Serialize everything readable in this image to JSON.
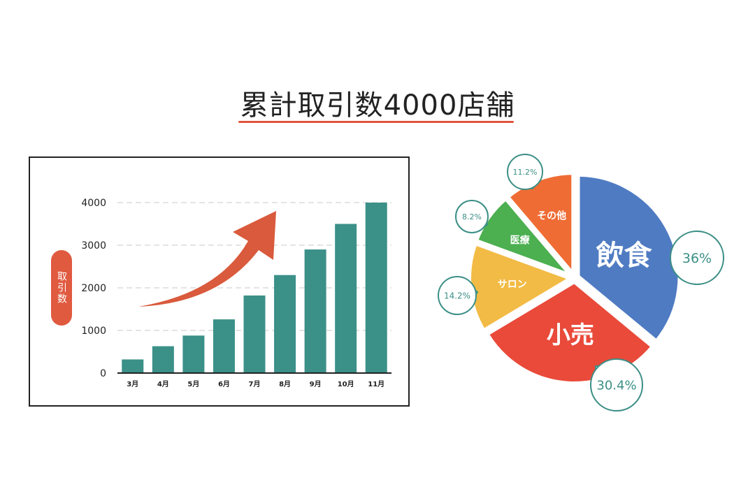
{
  "page": {
    "title": "累計取引数4000店舗"
  },
  "chart_data": [
    {
      "type": "bar",
      "ylabel": "取引数",
      "categories": [
        "3月",
        "4月",
        "5月",
        "6月",
        "7月",
        "8月",
        "9月",
        "10月",
        "11月"
      ],
      "values": [
        320,
        630,
        880,
        1260,
        1820,
        2300,
        2900,
        3500,
        4000
      ],
      "yticks": [
        0,
        1000,
        2000,
        3000,
        4000
      ],
      "ylim": [
        0,
        4000
      ],
      "grid": true,
      "colors": {
        "bar": "#3b9088",
        "arrow": "#d95a3c",
        "label_pill": "#e05a40"
      }
    },
    {
      "type": "pie",
      "slices": [
        {
          "label": "飲食",
          "value": 36,
          "value_label": "36%",
          "color": "#4f7bc2"
        },
        {
          "label": "小売",
          "value": 30.4,
          "value_label": "30.4%",
          "color": "#e94a3a"
        },
        {
          "label": "サロン",
          "value": 14.2,
          "value_label": "14.2%",
          "color": "#f2bb45"
        },
        {
          "label": "医療",
          "value": 8.2,
          "value_label": "8.2%",
          "color": "#4caf50"
        },
        {
          "label": "その他",
          "value": 11.2,
          "value_label": "11.2%",
          "color": "#ef6c34"
        }
      ],
      "callout_border_color": "#3b8f86"
    }
  ]
}
